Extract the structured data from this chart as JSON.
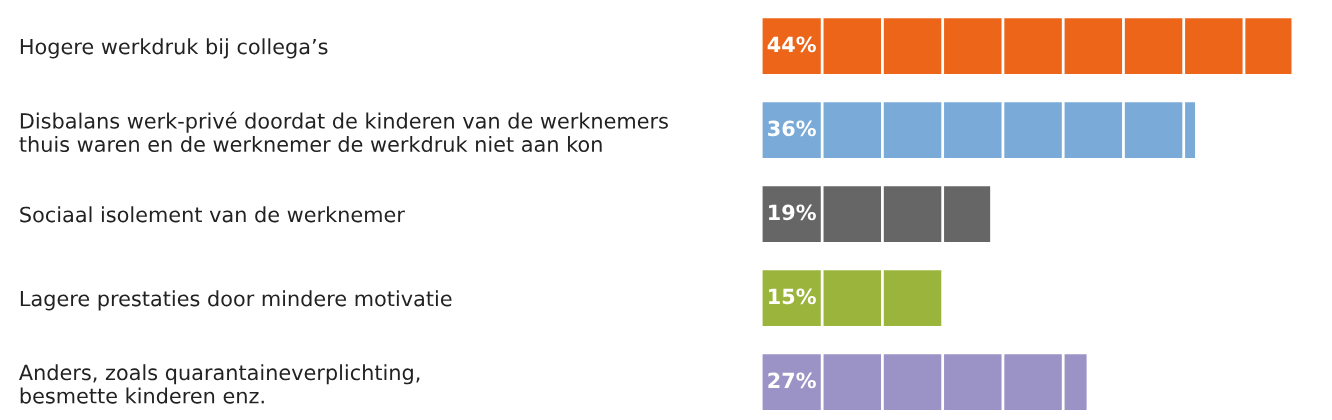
{
  "chart_data": {
    "type": "bar",
    "orientation": "horizontal",
    "categories": [
      "Hogere werkdruk bij collega’s",
      "Disbalans werk-privé doordat de kinderen van de werknemers\nthuis waren en de werknemer de werkdruk niet aan kon",
      "Sociaal isolement van de werknemer",
      "Lagere prestaties door mindere motivatie",
      "Anders, zoals quarantaineverplichting,\nbesmette kinderen enz."
    ],
    "values": [
      44,
      36,
      19,
      15,
      27
    ],
    "colors": [
      "#ec6519",
      "#7aaad8",
      "#666666",
      "#9ab43c",
      "#9b92c6"
    ],
    "value_labels": [
      "44%",
      "36%",
      "19%",
      "15%",
      "27%"
    ],
    "xticks": [
      {
        "value": 5,
        "label": null
      },
      {
        "value": 10,
        "label": null
      },
      {
        "value": 15,
        "label": null
      },
      {
        "value": 20,
        "label": null
      },
      {
        "value": 25,
        "label": null
      },
      {
        "value": 30,
        "label": null
      },
      {
        "value": 35,
        "label": null
      },
      {
        "value": 40,
        "label": null
      }
    ],
    "tick_labels": "y",
    "grid": "x",
    "legend": false
  }
}
